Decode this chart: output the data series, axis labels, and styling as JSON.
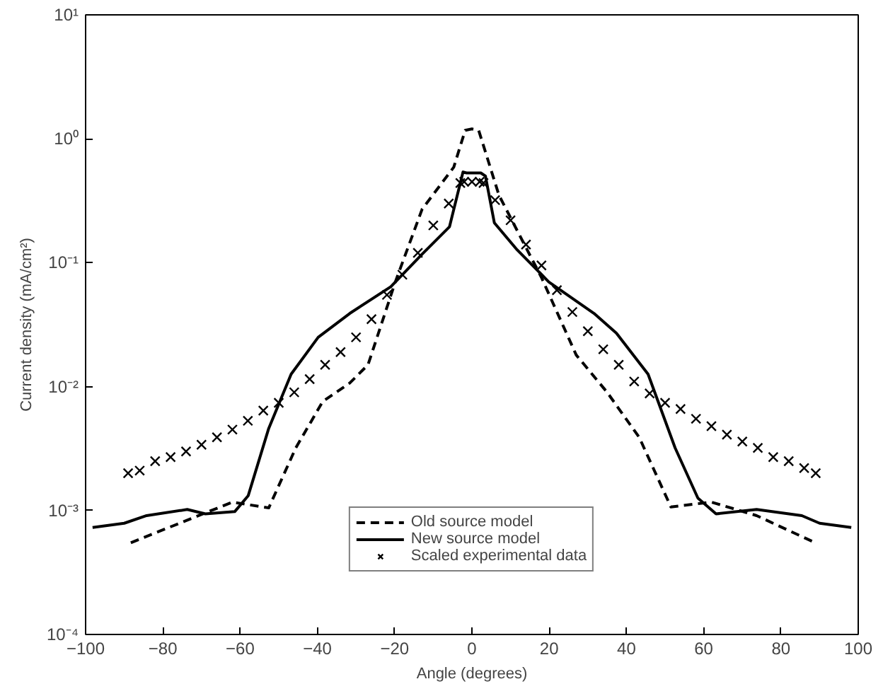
{
  "chart_data": {
    "type": "line",
    "xlabel": "Angle (degrees)",
    "ylabel": "Current density (mA/cm²)",
    "log": "y",
    "grid": false,
    "legend": "bottom",
    "xlim": [
      -100,
      100
    ],
    "xticks": [
      -100,
      -80,
      -60,
      -40,
      -20,
      0,
      20,
      40,
      60,
      80,
      100
    ],
    "ylim": [
      0.0001,
      10
    ],
    "yticks": [
      {
        "value": 0.0001,
        "label": "10⁻⁴"
      },
      {
        "value": 0.001,
        "label": "10⁻³"
      },
      {
        "value": 0.01,
        "label": "10⁻²"
      },
      {
        "value": 0.1,
        "label": "10⁻¹"
      },
      {
        "value": 1,
        "label": "10⁰"
      },
      {
        "value": 10,
        "label": "10¹"
      }
    ],
    "series": [
      {
        "name": "Old source model",
        "color": "#000000",
        "line_style": "dashed",
        "marker": "none",
        "x": [
          -88.3,
          -62,
          -52.6,
          -45.6,
          -38.6,
          -31.6,
          -26.9,
          -19.9,
          -12.9,
          -4.7,
          -1.75,
          0,
          1.75,
          7,
          18,
          27,
          35,
          43.3,
          51.5,
          62,
          73.7,
          88.3
        ],
        "values": [
          0.00055,
          0.00117,
          0.00105,
          0.0032,
          0.0076,
          0.0107,
          0.015,
          0.069,
          0.27,
          0.59,
          1.17,
          1.2,
          1.17,
          0.35,
          0.076,
          0.018,
          0.009,
          0.0039,
          0.00107,
          0.00117,
          0.00091,
          0.00056
        ]
      },
      {
        "name": "New source model",
        "color": "#000000",
        "line_style": "solid",
        "marker": "none",
        "x": [
          -98.2,
          -90,
          -84.2,
          -73.7,
          -69,
          -61.4,
          -57.9,
          -52.6,
          -46.8,
          -39.8,
          -31.6,
          -21,
          -12.9,
          -5.8,
          -2.3,
          -1.4,
          2.3,
          3.5,
          5.8,
          11.7,
          19.9,
          31.6,
          37.4,
          45.6,
          52.6,
          58.5,
          63.2,
          73.7,
          85.4,
          90,
          98.2
        ],
        "values": [
          0.00073,
          0.00079,
          0.00091,
          0.00102,
          0.00094,
          0.00098,
          0.00132,
          0.0046,
          0.0126,
          0.025,
          0.039,
          0.064,
          0.117,
          0.195,
          0.54,
          0.53,
          0.53,
          0.5,
          0.21,
          0.127,
          0.07,
          0.039,
          0.027,
          0.0126,
          0.0032,
          0.00126,
          0.00094,
          0.00102,
          0.00091,
          0.00079,
          0.00073
        ]
      },
      {
        "name": "Scaled experimental data",
        "color": "#000000",
        "type": "scatter",
        "marker": "cross",
        "x": [
          -89,
          -86,
          -82,
          -78,
          -74,
          -70,
          -66,
          -62,
          -58,
          -54,
          -50,
          -46,
          -42,
          -38,
          -34,
          -30,
          -26,
          -22,
          -18,
          -14,
          -10,
          -6,
          -3,
          -2,
          0,
          2,
          3,
          6,
          10,
          14,
          18,
          22,
          26,
          30,
          34,
          38,
          42,
          46,
          50,
          54,
          58,
          62,
          66,
          70,
          74,
          78,
          82,
          86,
          89
        ],
        "values": [
          0.002,
          0.0021,
          0.0025,
          0.0027,
          0.003,
          0.0034,
          0.0039,
          0.0045,
          0.0053,
          0.0064,
          0.0074,
          0.009,
          0.0115,
          0.015,
          0.019,
          0.025,
          0.035,
          0.055,
          0.08,
          0.12,
          0.2,
          0.3,
          0.44,
          0.45,
          0.45,
          0.45,
          0.44,
          0.32,
          0.22,
          0.14,
          0.095,
          0.06,
          0.04,
          0.028,
          0.02,
          0.015,
          0.011,
          0.0088,
          0.0074,
          0.0066,
          0.0055,
          0.0048,
          0.0041,
          0.0036,
          0.0032,
          0.0027,
          0.0025,
          0.0022,
          0.002
        ]
      }
    ]
  }
}
